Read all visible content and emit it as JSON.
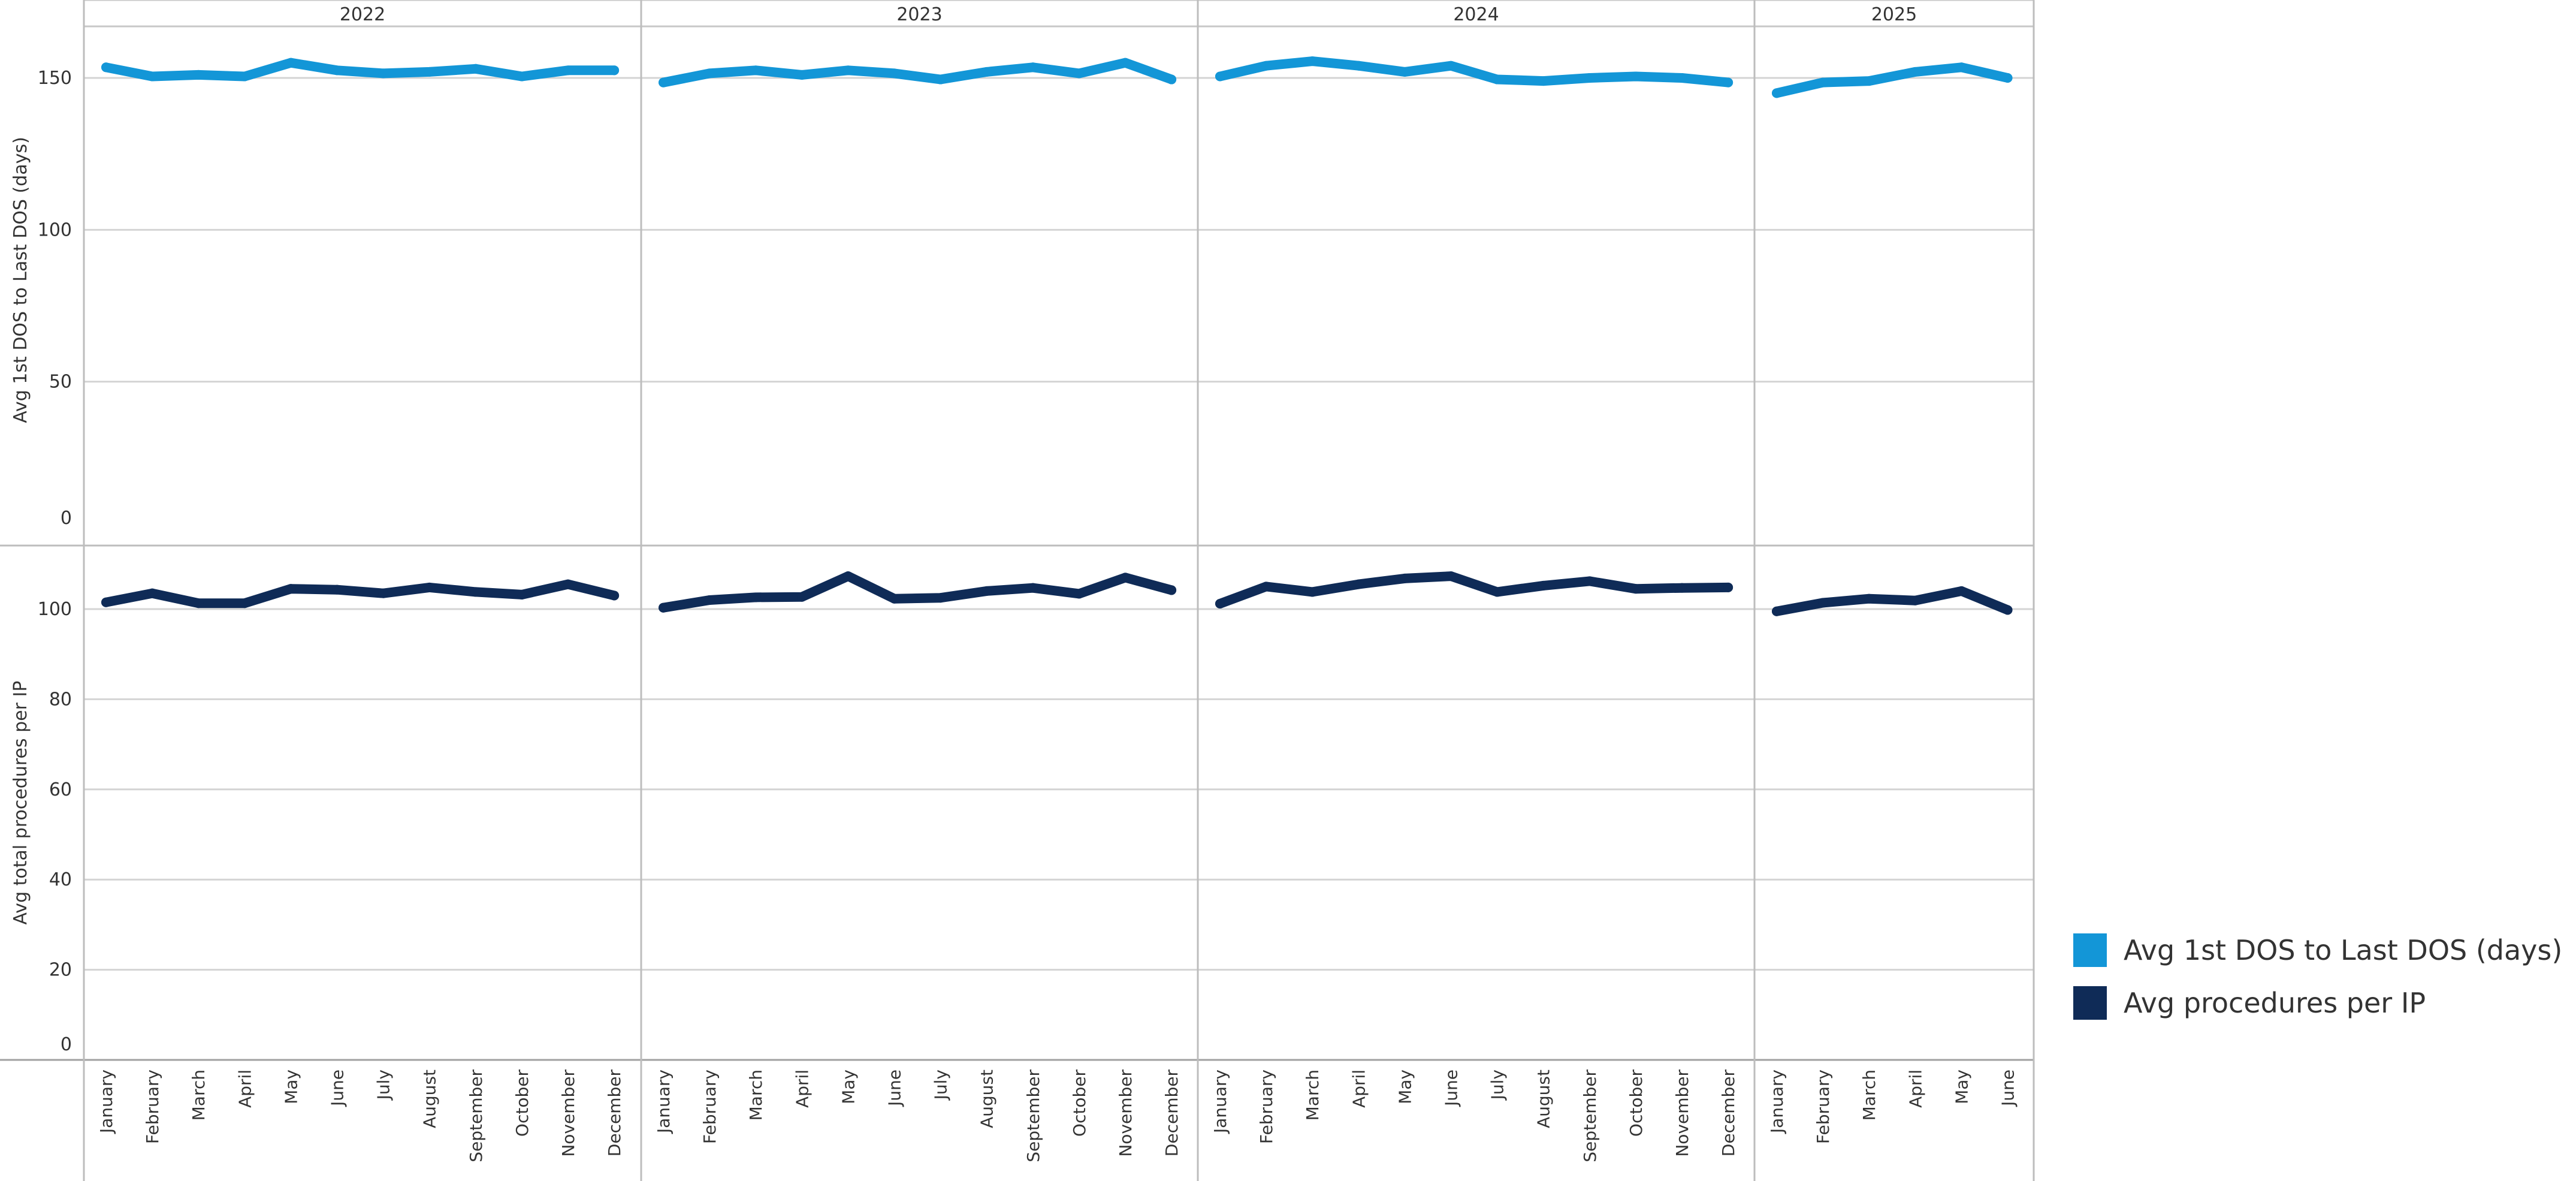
{
  "chart_data": {
    "type": "line",
    "facets": [
      {
        "label": "2022",
        "months": [
          "January",
          "February",
          "March",
          "April",
          "May",
          "June",
          "July",
          "August",
          "September",
          "October",
          "November",
          "December"
        ]
      },
      {
        "label": "2023",
        "months": [
          "January",
          "February",
          "March",
          "April",
          "May",
          "June",
          "July",
          "August",
          "September",
          "October",
          "November",
          "December"
        ]
      },
      {
        "label": "2024",
        "months": [
          "January",
          "February",
          "March",
          "April",
          "May",
          "June",
          "July",
          "August",
          "September",
          "October",
          "November",
          "December"
        ]
      },
      {
        "label": "2025",
        "months": [
          "January",
          "February",
          "March",
          "April",
          "May",
          "June"
        ]
      }
    ],
    "panels": [
      {
        "ylabel": "Avg 1st DOS to Last DOS (days)",
        "ylim": [
          0,
          165
        ],
        "ticks": [
          0,
          50,
          100,
          150
        ],
        "tick_labels": [
          "0",
          "50",
          "100",
          "150"
        ],
        "series": {
          "name": "Avg 1st DOS to Last DOS (days)",
          "color": "#1396D7",
          "values": [
            [
              153.5,
              150.5,
              151,
              150.5,
              155,
              152.5,
              151.5,
              152,
              153,
              150.5,
              152.5,
              152.5
            ],
            [
              148.5,
              151.5,
              152.5,
              151,
              152.5,
              151.5,
              149.5,
              152,
              153.5,
              151.5,
              155,
              149.5
            ],
            [
              150.5,
              154,
              155.5,
              154,
              152,
              154,
              149.5,
              149,
              150,
              150.5,
              150,
              148.5
            ],
            [
              145,
              148.5,
              149,
              152,
              153.5,
              150
            ]
          ]
        }
      },
      {
        "ylabel": "Avg total procedures per IP",
        "ylim": [
          0,
          113
        ],
        "ticks": [
          0,
          20,
          40,
          60,
          80,
          100
        ],
        "tick_labels": [
          "0",
          "20",
          "40",
          "60",
          "80",
          "100"
        ],
        "series": {
          "name": "Avg procedures per IP",
          "color": "#0F2B57",
          "values": [
            [
              101.5,
              103.5,
              101.3,
              101.3,
              104.5,
              104.3,
              103.5,
              104.8,
              103.8,
              103.2,
              105.5,
              103
            ],
            [
              100.3,
              102,
              102.6,
              102.7,
              107.3,
              102.3,
              102.5,
              104,
              104.7,
              103.4,
              107,
              104.2
            ],
            [
              101.2,
              105,
              103.8,
              105.5,
              106.8,
              107.3,
              103.8,
              105.2,
              106.2,
              104.5,
              104.7,
              104.8
            ],
            [
              99.5,
              101.4,
              102.3,
              101.9,
              104,
              99.8
            ]
          ]
        }
      }
    ],
    "legend": [
      {
        "label": "Avg 1st DOS to Last DOS (days)",
        "color": "#1396D7"
      },
      {
        "label": "Avg procedures per IP",
        "color": "#0F2B57"
      }
    ],
    "legend_position": "bottom-right",
    "grid": true
  }
}
